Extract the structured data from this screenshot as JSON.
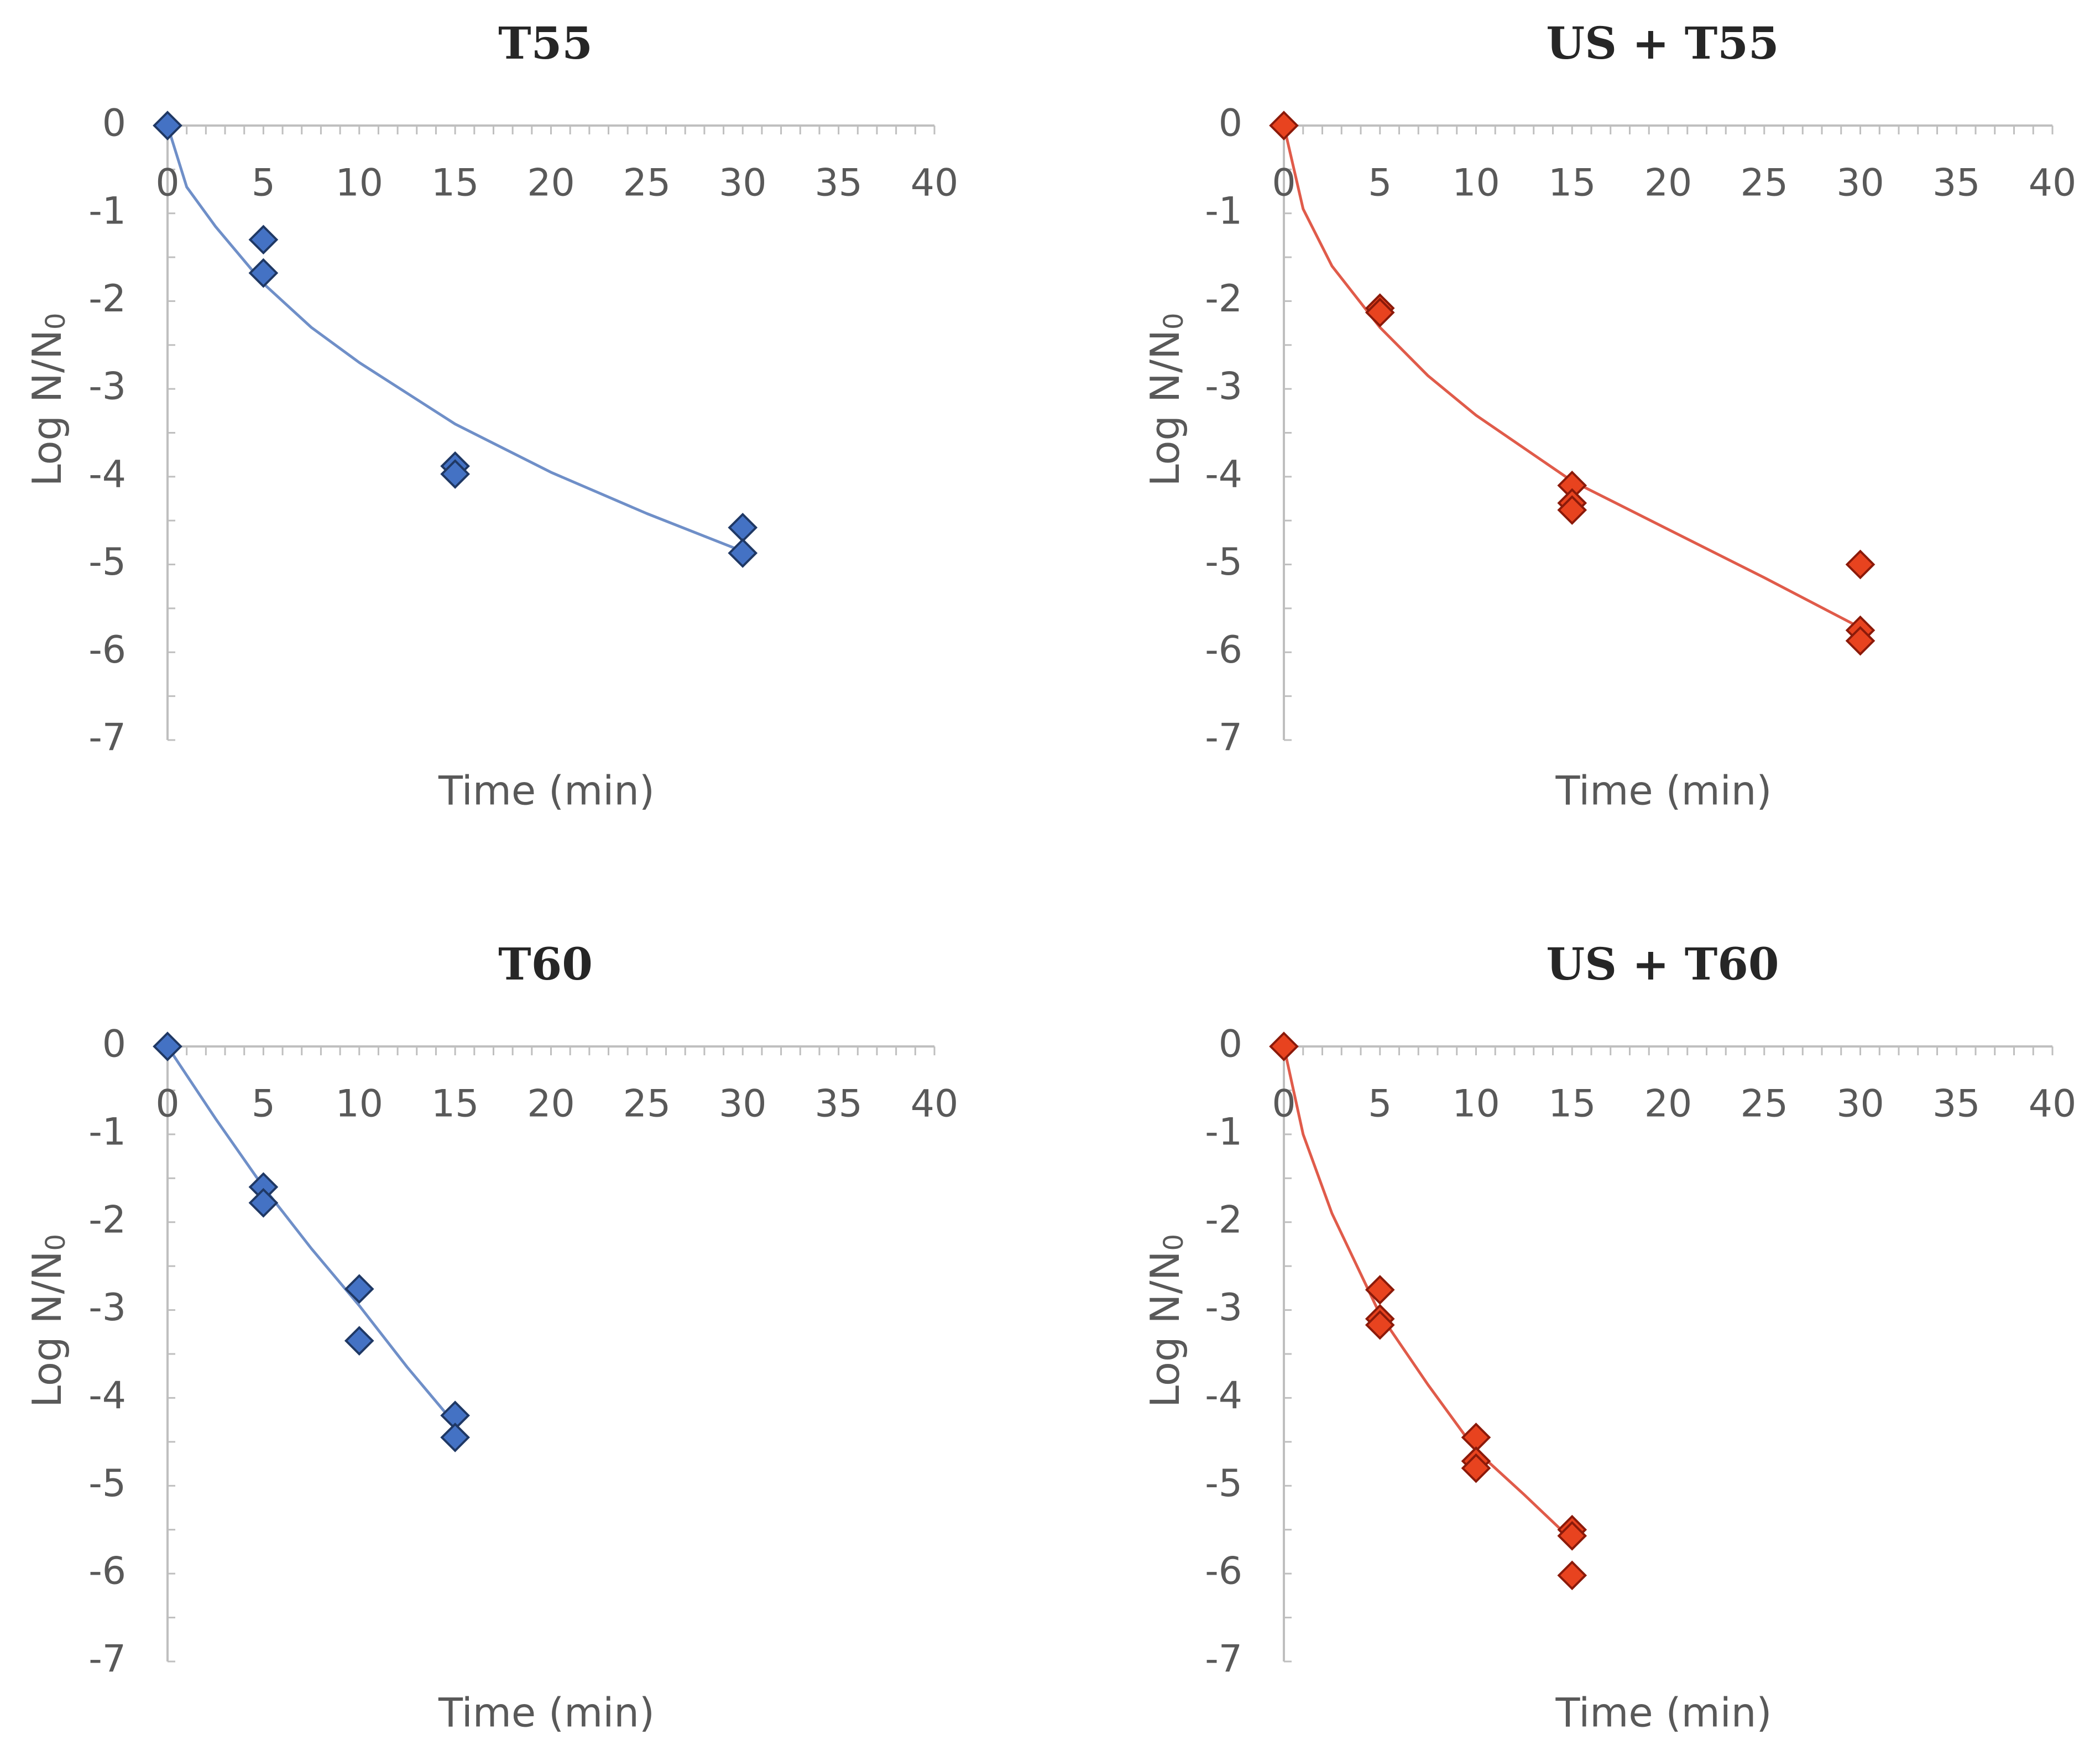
{
  "chart_data": [
    {
      "type": "scatter",
      "title": "T55",
      "xlabel": "Time (min)",
      "ylabel": "Log N/N",
      "ylabel_subscript": "0",
      "xlim": [
        0,
        40
      ],
      "ylim": [
        -7,
        0
      ],
      "xticks": [
        "0",
        "5",
        "10",
        "15",
        "20",
        "25",
        "30",
        "35",
        "40"
      ],
      "yticks": [
        "0",
        "-1",
        "-2",
        "-3",
        "-4",
        "-5",
        "-6",
        "-7"
      ],
      "marker_color": "#4472c4",
      "marker_edge": "#1f3864",
      "line_color": "#6f8fc8",
      "points": [
        [
          0,
          0
        ],
        [
          5,
          -1.3
        ],
        [
          5,
          -1.68
        ],
        [
          15,
          -3.88
        ],
        [
          15,
          -3.97
        ],
        [
          30,
          -4.58
        ],
        [
          30,
          -4.87
        ]
      ],
      "fit": [
        [
          0,
          0
        ],
        [
          1,
          -0.7
        ],
        [
          2.5,
          -1.15
        ],
        [
          5,
          -1.8
        ],
        [
          7.5,
          -2.3
        ],
        [
          10,
          -2.7
        ],
        [
          15,
          -3.4
        ],
        [
          20,
          -3.95
        ],
        [
          25,
          -4.42
        ],
        [
          30,
          -4.85
        ]
      ]
    },
    {
      "type": "scatter",
      "title": "US + T55",
      "xlabel": "Time (min)",
      "ylabel": "Log N/N",
      "ylabel_subscript": "0",
      "xlim": [
        0,
        40
      ],
      "ylim": [
        -7,
        0
      ],
      "xticks": [
        "0",
        "5",
        "10",
        "15",
        "20",
        "25",
        "30",
        "35",
        "40"
      ],
      "yticks": [
        "0",
        "-1",
        "-2",
        "-3",
        "-4",
        "-5",
        "-6",
        "-7"
      ],
      "marker_color": "#e8431f",
      "marker_edge": "#8b1a0a",
      "line_color": "#e05b4a",
      "points": [
        [
          0,
          0
        ],
        [
          5,
          -2.08
        ],
        [
          5,
          -2.13
        ],
        [
          15,
          -4.1
        ],
        [
          15,
          -4.3
        ],
        [
          15,
          -4.38
        ],
        [
          30,
          -5.0
        ],
        [
          30,
          -5.75
        ],
        [
          30,
          -5.87
        ]
      ],
      "fit": [
        [
          0,
          0
        ],
        [
          1,
          -0.95
        ],
        [
          2.5,
          -1.6
        ],
        [
          5,
          -2.3
        ],
        [
          7.5,
          -2.85
        ],
        [
          10,
          -3.3
        ],
        [
          15,
          -4.05
        ],
        [
          20,
          -4.6
        ],
        [
          25,
          -5.15
        ],
        [
          30,
          -5.72
        ]
      ]
    },
    {
      "type": "scatter",
      "title": "T60",
      "xlabel": "Time (min)",
      "ylabel": "Log N/N",
      "ylabel_subscript": "0",
      "xlim": [
        0,
        40
      ],
      "ylim": [
        -7,
        0
      ],
      "xticks": [
        "0",
        "5",
        "10",
        "15",
        "20",
        "25",
        "30",
        "35",
        "40"
      ],
      "yticks": [
        "0",
        "-1",
        "-2",
        "-3",
        "-4",
        "-5",
        "-6",
        "-7"
      ],
      "marker_color": "#4472c4",
      "marker_edge": "#1f3864",
      "line_color": "#6f8fc8",
      "points": [
        [
          0,
          0
        ],
        [
          5,
          -1.6
        ],
        [
          5,
          -1.78
        ],
        [
          10,
          -2.76
        ],
        [
          10,
          -3.35
        ],
        [
          15,
          -4.2
        ],
        [
          15,
          -4.45
        ]
      ],
      "fit": [
        [
          0,
          0
        ],
        [
          2.5,
          -0.82
        ],
        [
          5,
          -1.6
        ],
        [
          7.5,
          -2.3
        ],
        [
          10,
          -2.95
        ],
        [
          12.5,
          -3.65
        ],
        [
          15,
          -4.3
        ]
      ]
    },
    {
      "type": "scatter",
      "title": "US + T60",
      "xlabel": "Time (min)",
      "ylabel": "Log N/N",
      "ylabel_subscript": "0",
      "xlim": [
        0,
        40
      ],
      "ylim": [
        -7,
        0
      ],
      "xticks": [
        "0",
        "5",
        "10",
        "15",
        "20",
        "25",
        "30",
        "35",
        "40"
      ],
      "yticks": [
        "0",
        "-1",
        "-2",
        "-3",
        "-4",
        "-5",
        "-6",
        "-7"
      ],
      "marker_color": "#e8431f",
      "marker_edge": "#8b1a0a",
      "line_color": "#e05b4a",
      "points": [
        [
          0,
          0
        ],
        [
          5,
          -2.77
        ],
        [
          5,
          -3.1
        ],
        [
          5,
          -3.17
        ],
        [
          10,
          -4.45
        ],
        [
          10,
          -4.72
        ],
        [
          10,
          -4.8
        ],
        [
          15,
          -5.5
        ],
        [
          15,
          -5.57
        ],
        [
          15,
          -6.02
        ]
      ],
      "fit": [
        [
          0,
          0
        ],
        [
          1,
          -1.0
        ],
        [
          2.5,
          -1.9
        ],
        [
          5,
          -3.05
        ],
        [
          7.5,
          -3.85
        ],
        [
          10,
          -4.6
        ],
        [
          12.5,
          -5.1
        ],
        [
          15,
          -5.62
        ]
      ]
    }
  ]
}
